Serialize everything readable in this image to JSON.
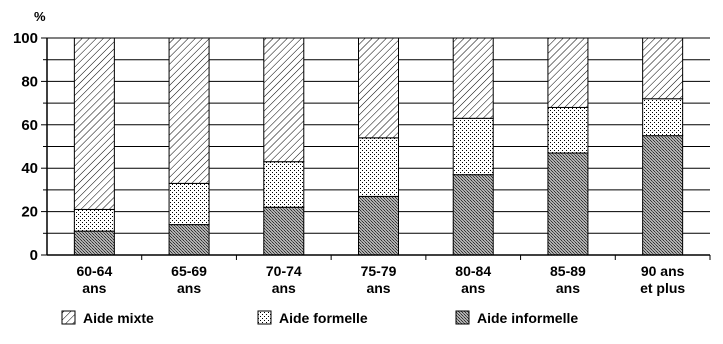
{
  "chart_data": {
    "type": "bar",
    "stacked": true,
    "normalized_100": true,
    "unit_label": "%",
    "ylim": [
      0,
      100
    ],
    "yticks": [
      0,
      20,
      40,
      60,
      80,
      100
    ],
    "grid": true,
    "legend_position": "bottom",
    "categories": [
      [
        "60-64",
        "ans"
      ],
      [
        "65-69",
        "ans"
      ],
      [
        "70-74",
        "ans"
      ],
      [
        "75-79",
        "ans"
      ],
      [
        "80-84",
        "ans"
      ],
      [
        "85-89",
        "ans"
      ],
      [
        "90 ans",
        "et plus"
      ]
    ],
    "series": [
      {
        "name": "Aide informelle",
        "pattern": "crosshatch",
        "values": [
          11,
          14,
          22,
          27,
          37,
          47,
          55
        ]
      },
      {
        "name": "Aide formelle",
        "pattern": "dots",
        "values": [
          10,
          19,
          21,
          27,
          26,
          21,
          17
        ]
      },
      {
        "name": "Aide mixte",
        "pattern": "diagonal",
        "values": [
          79,
          67,
          57,
          46,
          37,
          32,
          28
        ]
      }
    ],
    "legend_order": [
      "Aide mixte",
      "Aide formelle",
      "Aide informelle"
    ]
  }
}
